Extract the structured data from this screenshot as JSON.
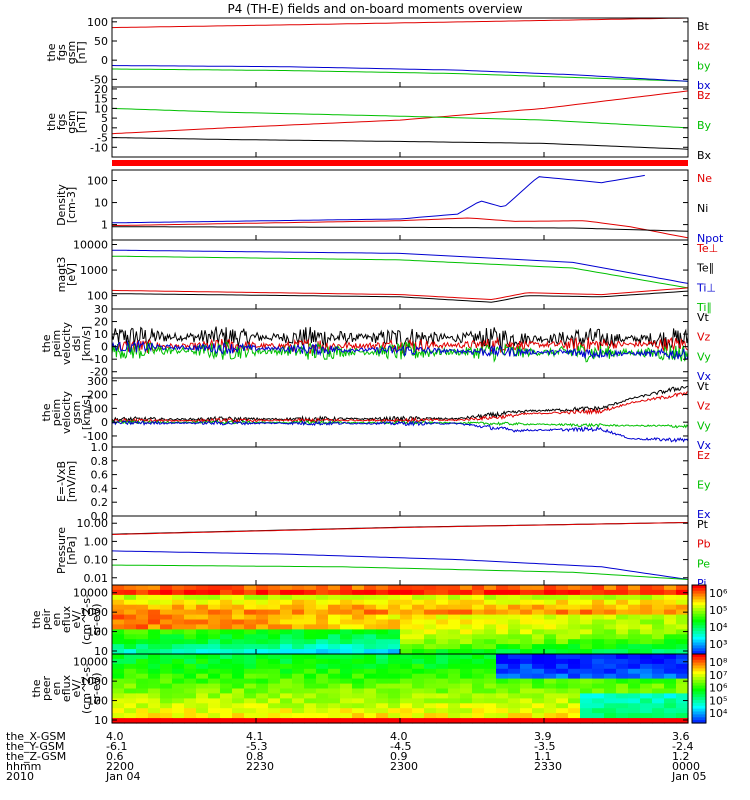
{
  "title": "P4 (TH-E) fields and on-board moments overview",
  "colors": {
    "black": "#000000",
    "red": "#e00000",
    "green": "#00c000",
    "blue": "#0000d0",
    "sepbar": "#ff0000"
  },
  "chart_data": [
    {
      "type": "line",
      "id": "p1",
      "ylabel": [
        "the",
        "fgs",
        "gsm",
        "[nT]"
      ],
      "yticks": [
        "100",
        "50",
        "0",
        "-50"
      ],
      "legend": [
        {
          "text": "Bt",
          "color": "black"
        },
        {
          "text": "bz",
          "color": "red"
        },
        {
          "text": "by",
          "color": "green"
        },
        {
          "text": "bx",
          "color": "blue"
        }
      ],
      "series": [
        {
          "name": "bz",
          "color": "red",
          "x": [
            0,
            0.3,
            1
          ],
          "y": [
            85,
            92,
            110
          ]
        },
        {
          "name": "by",
          "color": "green",
          "x": [
            0,
            0.3,
            0.6,
            1
          ],
          "y": [
            -23,
            -27,
            -35,
            -55
          ]
        },
        {
          "name": "bx",
          "color": "blue",
          "x": [
            0,
            0.3,
            0.6,
            0.8,
            1
          ],
          "y": [
            -14,
            -17,
            -26,
            -38,
            -55
          ]
        }
      ]
    },
    {
      "type": "line",
      "id": "p2",
      "ylabel": [
        "the",
        "fgs",
        "gsm",
        "[nT]"
      ],
      "yticks": [
        "20",
        "15",
        "10",
        "5",
        "0",
        "-5",
        "-10"
      ],
      "legend": [
        {
          "text": "Bz",
          "color": "red"
        },
        {
          "text": "By",
          "color": "green"
        },
        {
          "text": "Bx",
          "color": "black"
        }
      ],
      "series": [
        {
          "name": "Bz",
          "color": "red",
          "x": [
            0,
            0.2,
            0.5,
            0.75,
            1
          ],
          "y": [
            -3,
            0,
            4,
            10,
            19
          ]
        },
        {
          "name": "By",
          "color": "green",
          "x": [
            0,
            0.2,
            0.5,
            0.75,
            1
          ],
          "y": [
            10,
            8,
            6,
            4,
            0
          ]
        },
        {
          "name": "Bx",
          "color": "black",
          "x": [
            0,
            0.2,
            0.5,
            0.75,
            1
          ],
          "y": [
            -5,
            -6,
            -7,
            -8,
            -11
          ]
        }
      ]
    },
    {
      "type": "line",
      "id": "p3",
      "ylabel": [
        "Density",
        "[cm-3]"
      ],
      "yticks": [
        "100",
        "10",
        "1"
      ],
      "legend": [
        {
          "text": "Ne",
          "color": "red"
        },
        {
          "text": "Ni",
          "color": "black"
        },
        {
          "text": "Npot",
          "color": "blue"
        }
      ],
      "series": [
        {
          "name": "Npot",
          "color": "blue",
          "x": [
            0,
            0.5,
            0.6,
            0.64,
            0.68,
            0.74,
            0.85,
            0.93
          ],
          "y": [
            1.2,
            1.8,
            3,
            12,
            6,
            150,
            80,
            180
          ]
        },
        {
          "name": "Ne",
          "color": "red",
          "x": [
            0,
            0.5,
            0.62,
            0.7,
            0.82,
            0.9,
            1
          ],
          "y": [
            0.9,
            1.5,
            2,
            1.4,
            1.5,
            0.8,
            0.25
          ]
        },
        {
          "name": "Ni",
          "color": "black",
          "x": [
            0,
            0.5,
            0.8,
            1
          ],
          "y": [
            0.8,
            0.75,
            0.7,
            0.5
          ]
        }
      ]
    },
    {
      "type": "line",
      "id": "p4",
      "ylabel": [
        "magt3",
        "[eV]"
      ],
      "yticks": [
        "10000",
        "1000",
        "100"
      ],
      "legend": [
        {
          "text": "Te⊥",
          "color": "red"
        },
        {
          "text": "Te∥",
          "color": "black"
        },
        {
          "text": "Ti⊥",
          "color": "blue"
        },
        {
          "text": "Ti∥",
          "color": "green"
        }
      ],
      "series": [
        {
          "name": "Ti⊥",
          "color": "blue",
          "x": [
            0,
            0.5,
            0.8,
            1
          ],
          "y": [
            6000,
            4500,
            2000,
            300
          ]
        },
        {
          "name": "Ti∥",
          "color": "green",
          "x": [
            0,
            0.5,
            0.8,
            1
          ],
          "y": [
            3500,
            2500,
            1200,
            200
          ]
        },
        {
          "name": "Te⊥",
          "color": "red",
          "x": [
            0,
            0.5,
            0.66,
            0.72,
            0.85,
            1
          ],
          "y": [
            160,
            110,
            70,
            130,
            110,
            200
          ]
        },
        {
          "name": "Te∥",
          "color": "black",
          "x": [
            0,
            0.5,
            0.66,
            0.72,
            0.85,
            1
          ],
          "y": [
            120,
            90,
            55,
            100,
            90,
            150
          ]
        }
      ]
    },
    {
      "type": "line",
      "id": "p5",
      "ylabel": [
        "the",
        "peim",
        "velocity",
        "dsl",
        "[km/s]"
      ],
      "yticks": [
        "30",
        "20",
        "10",
        "0",
        "-10",
        "-20"
      ],
      "legend": [
        {
          "text": "Vt",
          "color": "black"
        },
        {
          "text": "Vz",
          "color": "red"
        },
        {
          "text": "Vy",
          "color": "green"
        },
        {
          "text": "Vx",
          "color": "blue"
        }
      ],
      "series": [
        {
          "name": "Vt",
          "color": "black",
          "x": [
            0,
            1
          ],
          "y": [
            8,
            6
          ]
        },
        {
          "name": "Vz",
          "color": "red",
          "x": [
            0,
            1
          ],
          "y": [
            0,
            2
          ]
        },
        {
          "name": "Vy",
          "color": "green",
          "x": [
            0,
            1
          ],
          "y": [
            -3,
            -5
          ]
        },
        {
          "name": "Vx",
          "color": "blue",
          "x": [
            0,
            1
          ],
          "y": [
            0,
            -6
          ]
        }
      ]
    },
    {
      "type": "line",
      "id": "p6",
      "ylabel": [
        "the",
        "peim",
        "velocity",
        "gsm",
        "[km/s]"
      ],
      "yticks": [
        "300",
        "200",
        "100",
        "0",
        "-100"
      ],
      "legend": [
        {
          "text": "Vt",
          "color": "black"
        },
        {
          "text": "Vz",
          "color": "red"
        },
        {
          "text": "Vy",
          "color": "green"
        },
        {
          "text": "Vx",
          "color": "blue"
        }
      ],
      "series": [
        {
          "name": "Vt",
          "color": "black",
          "x": [
            0,
            0.6,
            0.68,
            0.72,
            0.85,
            0.9,
            1
          ],
          "y": [
            20,
            25,
            60,
            80,
            100,
            170,
            260
          ]
        },
        {
          "name": "Vz",
          "color": "red",
          "x": [
            0,
            0.6,
            0.68,
            0.72,
            0.85,
            0.9,
            1
          ],
          "y": [
            10,
            15,
            40,
            60,
            80,
            140,
            210
          ]
        },
        {
          "name": "Vy",
          "color": "green",
          "x": [
            0,
            0.6,
            0.8,
            1
          ],
          "y": [
            0,
            -5,
            -20,
            -30
          ]
        },
        {
          "name": "Vx",
          "color": "blue",
          "x": [
            0,
            0.6,
            0.7,
            0.85,
            0.9,
            1
          ],
          "y": [
            -5,
            -10,
            -60,
            -50,
            -120,
            -130
          ]
        }
      ]
    },
    {
      "type": "line",
      "id": "p7",
      "ylabel": [
        "E=-VxB",
        "[mV/m]"
      ],
      "yticks": [
        "1.0",
        "0.8",
        "0.6",
        "0.4",
        "0.2",
        "0.0"
      ],
      "legend": [
        {
          "text": "Ez",
          "color": "red"
        },
        {
          "text": "Ey",
          "color": "green"
        },
        {
          "text": "Ex",
          "color": "blue"
        }
      ],
      "series": []
    },
    {
      "type": "line",
      "id": "p8",
      "ylabel": [
        "Pressure",
        "[nPa]"
      ],
      "yticks": [
        "10.00",
        "1.00",
        "0.10",
        "0.01"
      ],
      "legend": [
        {
          "text": "Pt",
          "color": "black"
        },
        {
          "text": "Pb",
          "color": "red"
        },
        {
          "text": "Pe",
          "color": "green"
        },
        {
          "text": "Pi",
          "color": "blue"
        }
      ],
      "series": [
        {
          "name": "Pt",
          "color": "black",
          "x": [
            0,
            0.5,
            1
          ],
          "y": [
            2.5,
            6,
            11
          ]
        },
        {
          "name": "Pb",
          "color": "red",
          "x": [
            0,
            0.5,
            1
          ],
          "y": [
            2.4,
            5.8,
            11
          ]
        },
        {
          "name": "Pi",
          "color": "blue",
          "x": [
            0,
            0.3,
            0.6,
            0.85,
            1
          ],
          "y": [
            0.3,
            0.2,
            0.1,
            0.04,
            0.008
          ]
        },
        {
          "name": "Pe",
          "color": "green",
          "x": [
            0,
            0.4,
            0.8,
            1
          ],
          "y": [
            0.05,
            0.04,
            0.02,
            0.008
          ]
        }
      ]
    },
    {
      "type": "heatmap",
      "id": "p9",
      "ylabel": [
        "the",
        "peir",
        "en",
        "eflux",
        "eV/",
        "(cm^2-s-",
        "sr-eV)"
      ],
      "yticks": [
        "10000",
        "1000",
        "100",
        "10"
      ],
      "colorbar_ticks": [
        "10⁶",
        "10⁵",
        "10⁴",
        "10³"
      ]
    },
    {
      "type": "heatmap",
      "id": "p10",
      "ylabel": [
        "the",
        "peer",
        "en",
        "eflux",
        "eV/",
        "(cm^2-s-",
        "sr-eV)"
      ],
      "yticks": [
        "10000",
        "1000",
        "100",
        "10"
      ],
      "colorbar_ticks": [
        "10⁸",
        "10⁷",
        "10⁶",
        "10⁵",
        "10⁴"
      ]
    }
  ],
  "xaxis": {
    "rows": [
      {
        "label": "the_X-GSM",
        "values": [
          "4.0",
          "4.1",
          "4.0",
          "3.9",
          "3.6"
        ]
      },
      {
        "label": "the_Y-GSM",
        "values": [
          "-6.1",
          "-5.3",
          "-4.5",
          "-3.5",
          "-2.4"
        ]
      },
      {
        "label": "the_Z-GSM",
        "values": [
          "0.6",
          "0.8",
          "0.9",
          "1.1",
          "1.2"
        ]
      },
      {
        "label": "hhmm",
        "values": [
          "2200",
          "2230",
          "2300",
          "2330",
          "0000"
        ]
      },
      {
        "label": "2010",
        "values": [
          "Jan 04",
          "",
          "",
          "",
          "Jan 05"
        ]
      }
    ]
  }
}
